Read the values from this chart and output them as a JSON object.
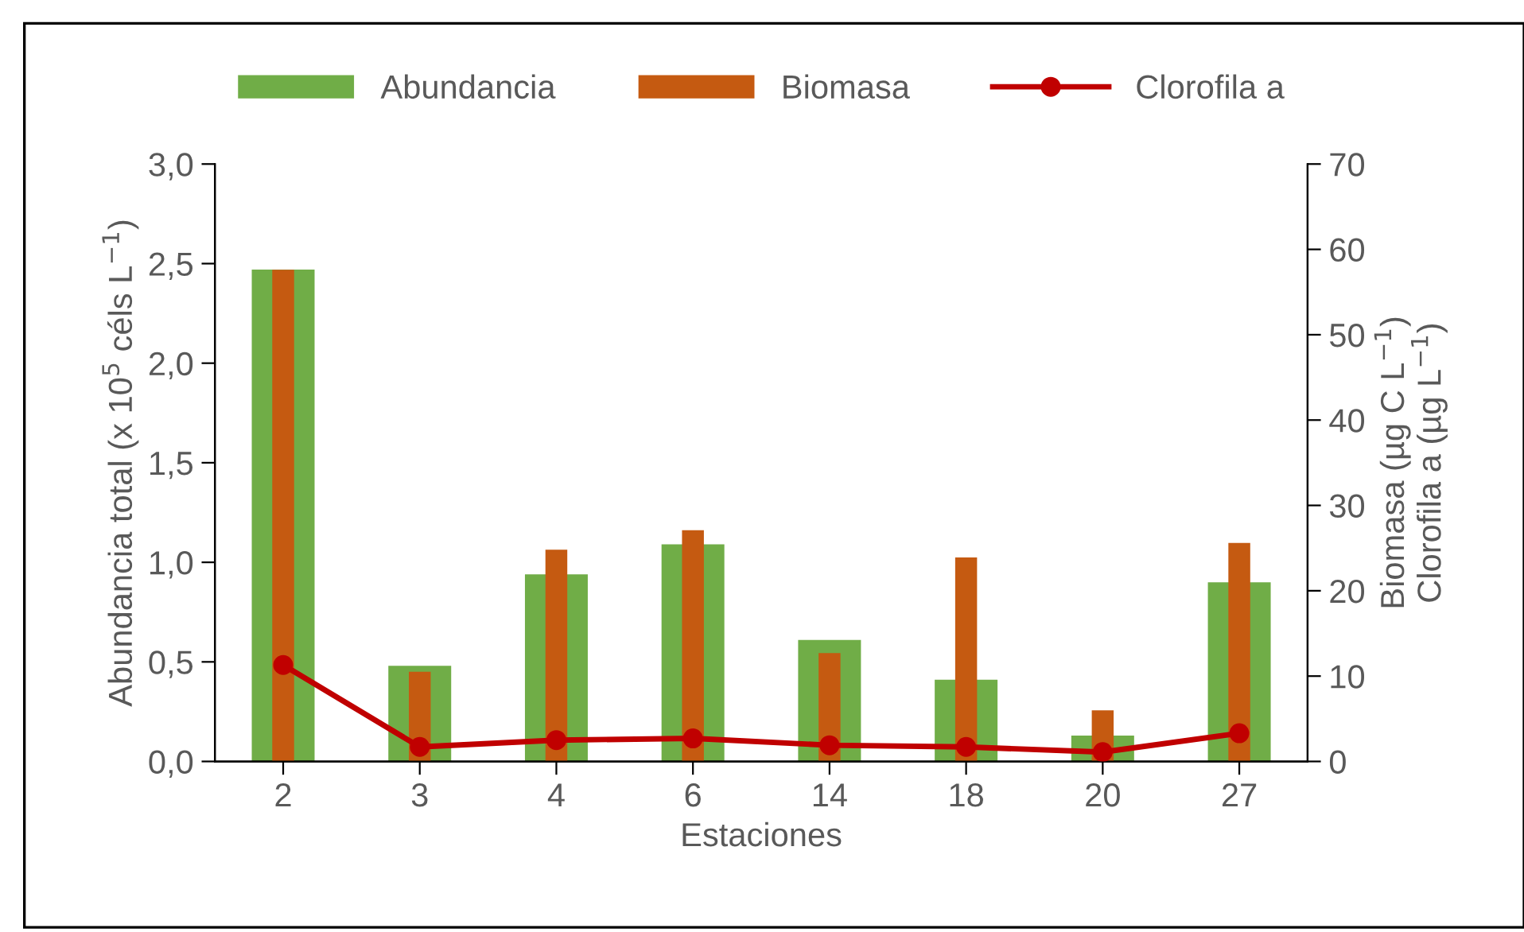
{
  "chart_data": {
    "type": "bar",
    "xlabel": "Estaciones",
    "ylabel": "Abundancia total (x 10$^{5}$ céls L$^{−1}$)",
    "y2label": "Biomasa (µg C L$^{−1}$)\nClorofila a (µg L$^{−1}$)",
    "categories": [
      "2",
      "3",
      "4",
      "6",
      "14",
      "18",
      "20",
      "27"
    ],
    "series": [
      {
        "name": "Abundancia",
        "color": "#70ad47",
        "values": [
          2.47,
          0.48,
          0.94,
          1.09,
          0.61,
          0.41,
          0.13,
          0.9
        ]
      },
      {
        "name": "Biomasa",
        "axis": "y2",
        "color": "#c55a11",
        "values": [
          57.6,
          10.5,
          24.8,
          27.1,
          12.7,
          23.9,
          6.0,
          25.6
        ]
      },
      {
        "name": "Clorofila a",
        "type": "line",
        "axis": "y2",
        "color": "#c00000",
        "marker": "circle",
        "values": [
          11.3,
          1.7,
          2.5,
          2.7,
          1.9,
          1.7,
          1.1,
          3.3
        ]
      }
    ],
    "ylim": [
      0,
      3.0
    ],
    "yticks": [
      {
        "value": 0,
        "label": "0,0"
      },
      {
        "value": 0.5,
        "label": "0,5"
      },
      {
        "value": 1.0,
        "label": "1,0"
      },
      {
        "value": 1.5,
        "label": "1,5"
      },
      {
        "value": 2.0,
        "label": "2,0"
      },
      {
        "value": 2.5,
        "label": "2,5"
      },
      {
        "value": 3.0,
        "label": "3,0"
      }
    ],
    "y2lim": [
      0,
      70
    ],
    "y2ticks": [
      0,
      10,
      20,
      30,
      40,
      50,
      60,
      70
    ],
    "grid": false,
    "legend": "top"
  }
}
